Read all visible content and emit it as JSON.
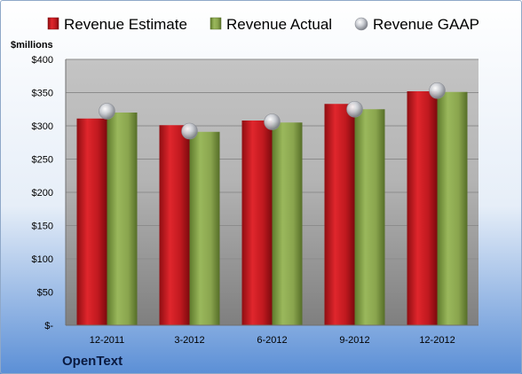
{
  "chart_data": {
    "type": "bar",
    "company": "OpenText",
    "ylabel": "$millions",
    "categories": [
      "12-2011",
      "3-2012",
      "6-2012",
      "9-2012",
      "12-2012"
    ],
    "series": [
      {
        "name": "Revenue Estimate",
        "kind": "bar",
        "color": "#c0191f",
        "values": [
          311,
          301,
          308,
          333,
          352
        ]
      },
      {
        "name": "Revenue Actual",
        "kind": "bar",
        "color": "#8aa54e",
        "values": [
          320,
          291,
          305,
          325,
          351
        ]
      },
      {
        "name": "Revenue GAAP",
        "kind": "marker",
        "color": "#b8bcc4",
        "values": [
          322,
          292,
          306,
          325,
          353
        ]
      }
    ],
    "ylim": [
      0,
      400
    ],
    "yticks": [
      0,
      50,
      100,
      150,
      200,
      250,
      300,
      350,
      400
    ],
    "ytick_labels": [
      "$-",
      "$50",
      "$100",
      "$150",
      "$200",
      "$250",
      "$300",
      "$350",
      "$400"
    ],
    "legend_position": "top",
    "grid": true
  }
}
